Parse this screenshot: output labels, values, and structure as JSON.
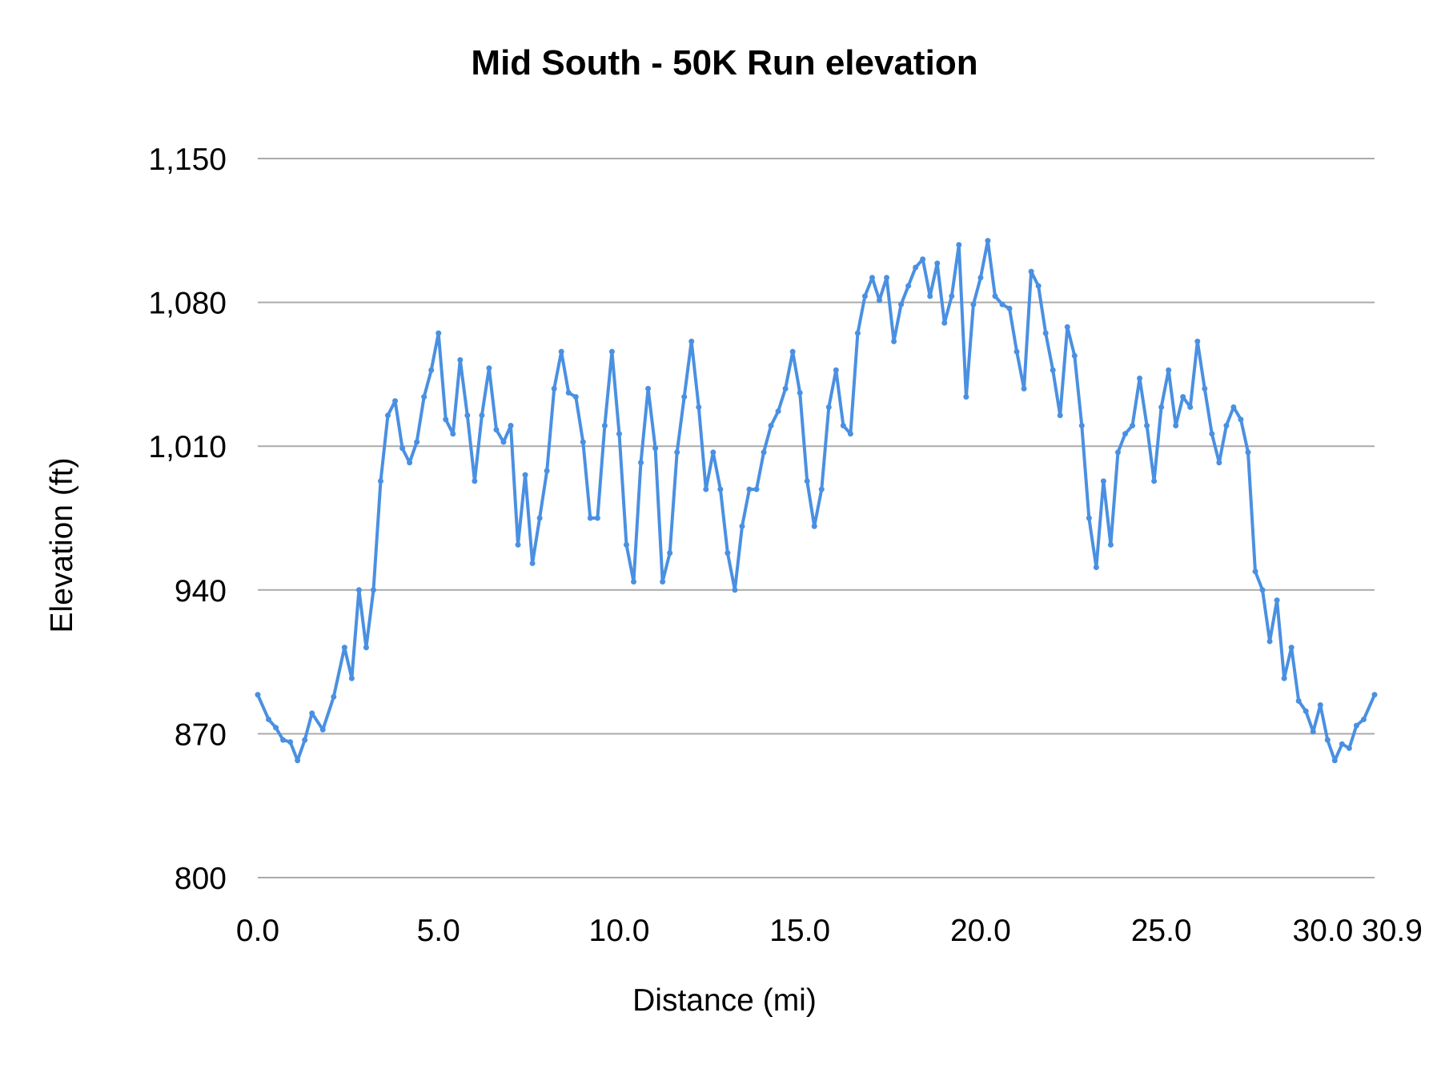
{
  "chart_data": {
    "type": "line",
    "title": "Mid South - 50K Run elevation",
    "xlabel": "Distance (mi)",
    "ylabel": "Elevation (ft)",
    "xlim": [
      0,
      30.9
    ],
    "ylim": [
      800,
      1150
    ],
    "x_ticks": [
      "0.0",
      "5.0",
      "10.0",
      "15.0",
      "20.0",
      "25.0",
      "30.0",
      "30.9"
    ],
    "x_tick_values": [
      0,
      5,
      10,
      15,
      20,
      25,
      30,
      30.9
    ],
    "y_ticks": [
      "800",
      "870",
      "940",
      "1,010",
      "1,080",
      "1,150"
    ],
    "y_tick_values": [
      800,
      870,
      940,
      1010,
      1080,
      1150
    ],
    "grid": "horizontal",
    "markers": true,
    "line_color": "#4a90e2",
    "grid_color": "#aaaaaa",
    "series": [
      {
        "x": [
          0,
          0.3,
          0.5,
          0.7,
          0.9,
          1.1,
          1.3,
          1.5,
          1.8,
          2.1,
          2.4,
          2.6,
          2.8,
          3.0,
          3.2,
          3.4,
          3.6,
          3.8,
          4.0,
          4.2,
          4.4,
          4.6,
          4.8,
          5.0,
          5.2,
          5.4,
          5.6,
          5.8,
          6.0,
          6.2,
          6.4,
          6.6,
          6.8,
          7.0,
          7.2,
          7.4,
          7.6,
          7.8,
          8.0,
          8.2,
          8.4,
          8.6,
          8.8,
          9.0,
          9.2,
          9.4,
          9.6,
          9.8,
          10.0,
          10.2,
          10.4,
          10.6,
          10.8,
          11.0,
          11.2,
          11.4,
          11.6,
          11.8,
          12.0,
          12.2,
          12.4,
          12.6,
          12.8,
          13.0,
          13.2,
          13.4,
          13.6,
          13.8,
          14.0,
          14.2,
          14.4,
          14.6,
          14.8,
          15.0,
          15.2,
          15.4,
          15.6,
          15.8,
          16.0,
          16.2,
          16.4,
          16.6,
          16.8,
          17.0,
          17.2,
          17.4,
          17.6,
          17.8,
          18.0,
          18.2,
          18.4,
          18.6,
          18.8,
          19.0,
          19.2,
          19.4,
          19.6,
          19.8,
          20.0,
          20.2,
          20.4,
          20.6,
          20.8,
          21.0,
          21.2,
          21.4,
          21.6,
          21.8,
          22.0,
          22.2,
          22.4,
          22.6,
          22.8,
          23.0,
          23.2,
          23.4,
          23.6,
          23.8,
          24.0,
          24.2,
          24.4,
          24.6,
          24.8,
          25.0,
          25.2,
          25.4,
          25.6,
          25.8,
          26.0,
          26.2,
          26.4,
          26.6,
          26.8,
          27.0,
          27.2,
          27.4,
          27.6,
          27.8,
          28.0,
          28.2,
          28.4,
          28.6,
          28.8,
          29.0,
          29.2,
          29.4,
          29.6,
          29.8,
          30.0,
          30.2,
          30.4,
          30.6,
          30.9
        ],
        "y": [
          889,
          877,
          873,
          867,
          866,
          857,
          867,
          880,
          872,
          888,
          912,
          897,
          940,
          912,
          940,
          993,
          1025,
          1032,
          1009,
          1002,
          1012,
          1034,
          1047,
          1065,
          1023,
          1016,
          1052,
          1025,
          993,
          1025,
          1048,
          1018,
          1012,
          1020,
          962,
          996,
          953,
          975,
          998,
          1038,
          1056,
          1036,
          1034,
          1012,
          975,
          975,
          1020,
          1056,
          1016,
          962,
          944,
          1002,
          1038,
          1009,
          944,
          958,
          1007,
          1034,
          1061,
          1029,
          989,
          1007,
          989,
          958,
          940,
          971,
          989,
          989,
          1007,
          1020,
          1027,
          1038,
          1056,
          1036,
          993,
          971,
          989,
          1029,
          1047,
          1020,
          1016,
          1065,
          1083,
          1092,
          1081,
          1092,
          1061,
          1079,
          1088,
          1097,
          1101,
          1083,
          1099,
          1070,
          1083,
          1108,
          1034,
          1079,
          1092,
          1110,
          1083,
          1079,
          1077,
          1056,
          1038,
          1095,
          1088,
          1065,
          1047,
          1025,
          1068,
          1054,
          1020,
          975,
          951,
          993,
          962,
          1007,
          1016,
          1020,
          1043,
          1020,
          993,
          1029,
          1047,
          1020,
          1034,
          1029,
          1061,
          1038,
          1016,
          1002,
          1020,
          1029,
          1023,
          1007,
          949,
          940,
          915,
          935,
          897,
          912,
          886,
          881,
          871,
          884,
          867,
          857,
          865,
          863,
          874,
          877,
          889
        ]
      }
    ]
  }
}
